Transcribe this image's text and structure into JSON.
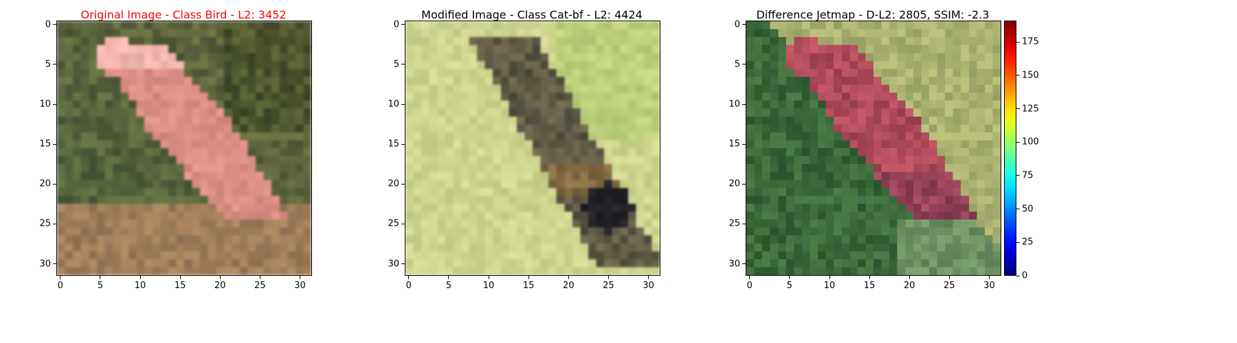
{
  "panels": [
    {
      "id": "original",
      "title": "Original Image - Class Bird - L2: 3452",
      "title_color": "#ff0000",
      "image": "original-bird-image"
    },
    {
      "id": "modified",
      "title": "Modified Image - Class Cat-bf - L2: 4424",
      "title_color": "#000000",
      "image": "modified-cat-bf-image"
    },
    {
      "id": "difference",
      "title": "Difference Jetmap - D-L2: 2805, SSIM: -2.3",
      "title_color": "#000000",
      "image": "difference-jetmap-image"
    }
  ],
  "chart_data": {
    "type": "heatmap",
    "x_ticks": [
      0,
      5,
      10,
      15,
      20,
      25,
      30
    ],
    "y_ticks": [
      0,
      5,
      10,
      15,
      20,
      25,
      30
    ],
    "xlim": [
      -0.5,
      31.5
    ],
    "ylim": [
      31.5,
      -0.5
    ],
    "colorbar": {
      "colormap": "jet",
      "range": [
        0,
        191
      ],
      "ticks": [
        0,
        25,
        50,
        75,
        100,
        125,
        150,
        175
      ]
    }
  }
}
